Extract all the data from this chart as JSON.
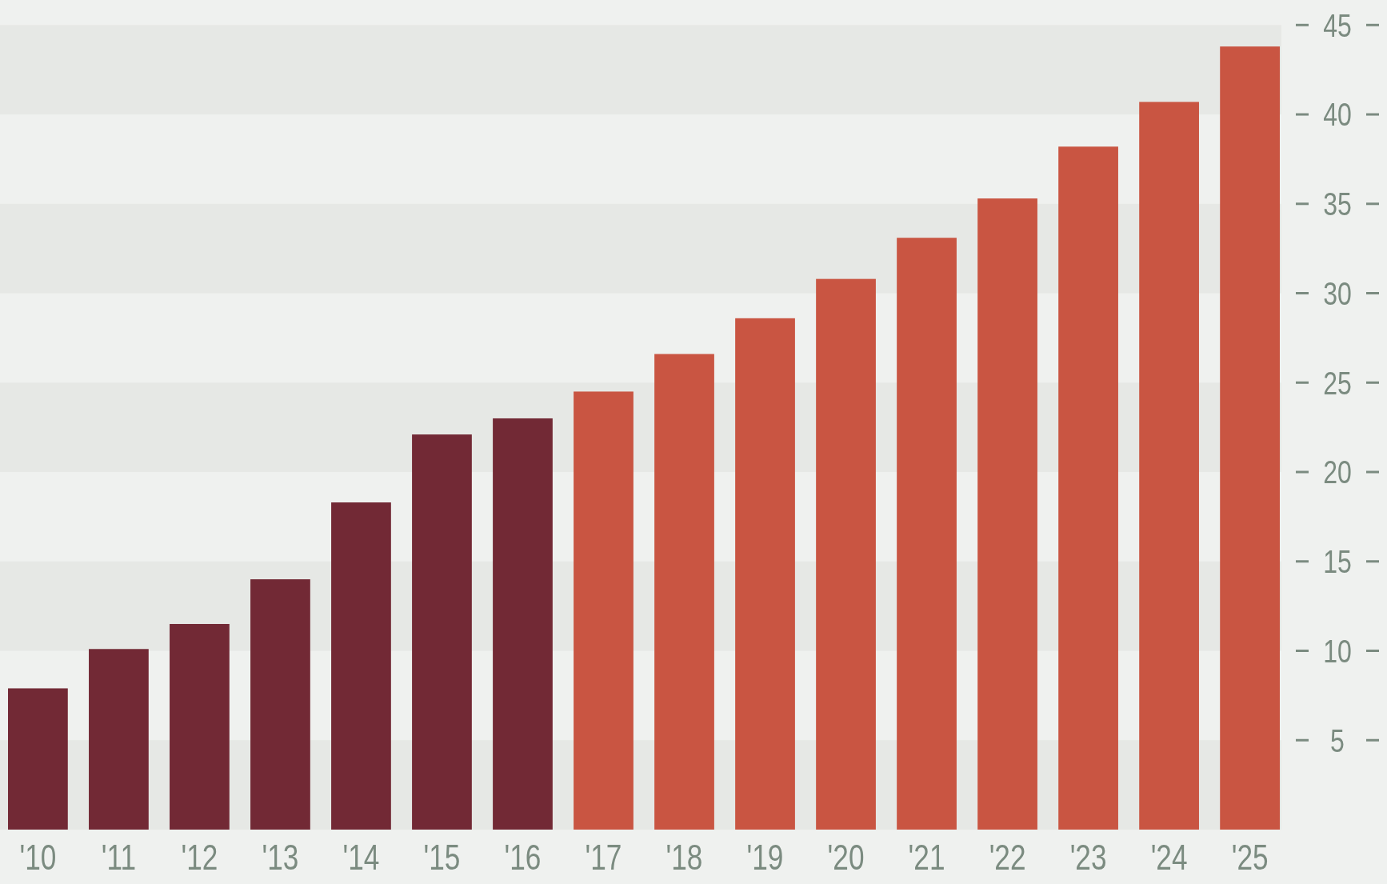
{
  "chart_data": {
    "type": "bar",
    "categories": [
      "'10",
      "'11",
      "'12",
      "'13",
      "'14",
      "'15",
      "'16",
      "'17",
      "'18",
      "'19",
      "'20",
      "'21",
      "'22",
      "'23",
      "'24",
      "'25"
    ],
    "values": [
      7.9,
      10.1,
      11.5,
      14.0,
      18.3,
      22.1,
      23.0,
      24.5,
      26.6,
      28.6,
      30.8,
      33.1,
      35.3,
      38.2,
      40.7,
      43.8
    ],
    "colors": [
      "#722935",
      "#722935",
      "#722935",
      "#722935",
      "#722935",
      "#722935",
      "#722935",
      "#c95542",
      "#c95542",
      "#c95542",
      "#c95542",
      "#c95542",
      "#c95542",
      "#c95542",
      "#c95542",
      "#c95542"
    ],
    "ylim": [
      0,
      46.4
    ],
    "yticks": [
      5,
      10,
      15,
      20,
      25,
      30,
      35,
      40,
      45
    ],
    "bands": [
      {
        "axis": "y",
        "from": 0,
        "to": 5,
        "color": "#e6e8e5"
      },
      {
        "axis": "y",
        "from": 10,
        "to": 15,
        "color": "#e6e8e5"
      },
      {
        "axis": "y",
        "from": 20,
        "to": 25,
        "color": "#e6e8e5"
      },
      {
        "axis": "y",
        "from": 30,
        "to": 35,
        "color": "#e6e8e5"
      },
      {
        "axis": "y",
        "from": 40,
        "to": 45,
        "color": "#e6e8e5"
      }
    ]
  }
}
